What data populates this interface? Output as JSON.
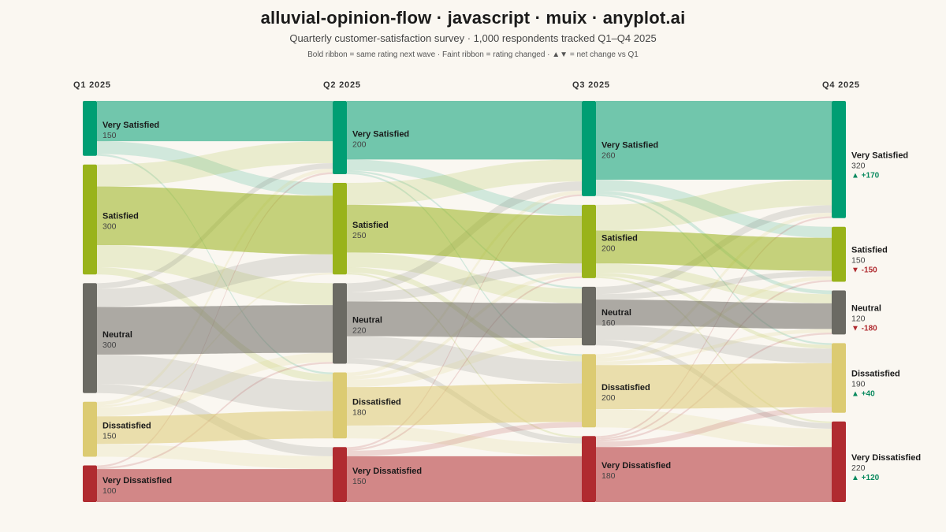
{
  "header": {
    "title": "alluvial-opinion-flow · javascript · muix · anyplot.ai",
    "subtitle": "Quarterly customer-satisfaction survey · 1,000 respondents tracked Q1–Q4 2025",
    "note": "Bold ribbon = same rating next wave · Faint ribbon = rating changed · ▲▼ = net change vs Q1"
  },
  "colors": {
    "Very Satisfied": "#009e73",
    "Satisfied": "#99b31a",
    "Neutral": "#6b6a63",
    "Dissatisfied": "#dccb72",
    "Very Dissatisfied": "#b02b30",
    "positive_delta": "#0a8a5f",
    "negative_delta": "#b02b30"
  },
  "chart_data": {
    "type": "alluvial",
    "waves": [
      "Q1 2025",
      "Q2 2025",
      "Q3 2025",
      "Q4 2025"
    ],
    "categories": [
      "Very Satisfied",
      "Satisfied",
      "Neutral",
      "Dissatisfied",
      "Very Dissatisfied"
    ],
    "totals": [
      [
        150,
        300,
        300,
        150,
        100
      ],
      [
        200,
        250,
        220,
        180,
        150
      ],
      [
        260,
        200,
        160,
        200,
        180
      ],
      [
        320,
        150,
        120,
        190,
        220
      ]
    ],
    "net_change_vs_q1": [
      "+170",
      "-150",
      "-180",
      "+40",
      "+120"
    ],
    "flows": [
      [
        [
          110,
          35,
          0,
          5,
          0
        ],
        [
          60,
          160,
          60,
          20,
          0
        ],
        [
          15,
          50,
          130,
          80,
          25
        ],
        [
          10,
          5,
          25,
          75,
          35
        ],
        [
          5,
          0,
          5,
          0,
          90
        ]
      ],
      [
        [
          160,
          30,
          5,
          5,
          0
        ],
        [
          60,
          130,
          40,
          15,
          5
        ],
        [
          25,
          25,
          95,
          60,
          15
        ],
        [
          10,
          10,
          20,
          105,
          35
        ],
        [
          5,
          5,
          0,
          15,
          125
        ]
      ],
      [
        [
          215,
          30,
          10,
          5,
          0
        ],
        [
          70,
          90,
          25,
          10,
          5
        ],
        [
          20,
          15,
          70,
          40,
          15
        ],
        [
          10,
          10,
          10,
          120,
          50
        ],
        [
          5,
          5,
          5,
          15,
          150
        ]
      ]
    ]
  }
}
